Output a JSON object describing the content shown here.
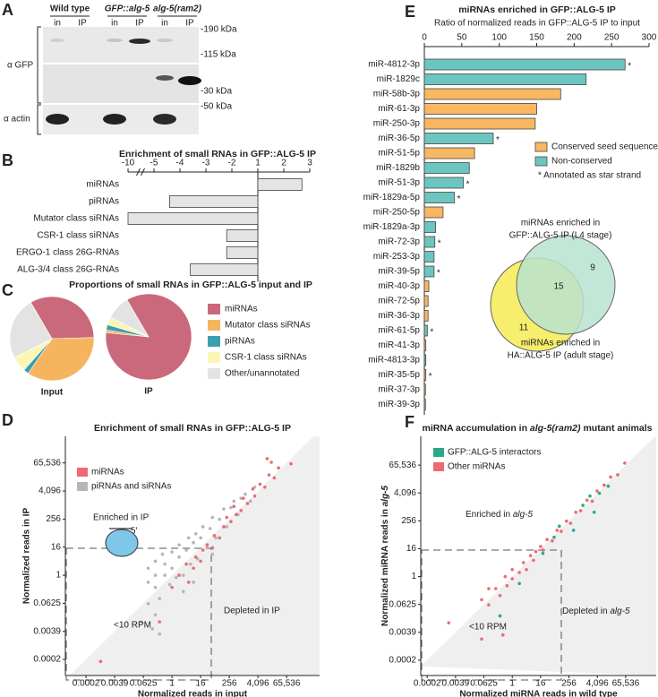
{
  "panel_labels": [
    "A",
    "B",
    "C",
    "D",
    "E",
    "F"
  ],
  "blot": {
    "groups": [
      "Wild type",
      "GFP::alg-5",
      "alg-5(ram2)"
    ],
    "lanes": [
      "in",
      "IP"
    ],
    "antibodies": [
      "α GFP",
      "α actin"
    ],
    "markers": [
      "-190 kDa",
      "-115 kDa",
      "-30 kDa",
      "-50 kDa"
    ]
  },
  "chart_data": [
    {
      "type": "bar",
      "orientation": "horizontal",
      "scale": "fold-change",
      "title": "Enrichment of small RNAs in GFP::ALG-5 IP",
      "categories": [
        "miRNAs",
        "piRNAs",
        "Mutator class siRNAs",
        "CSR-1 class siRNAs",
        "ERGO-1 class 26G-RNAs",
        "ALG-3/4 class 26G-RNAs"
      ],
      "series": [
        {
          "color": "#e4e4e4",
          "values": [
            2.7,
            -4.4,
            -10,
            -2.2,
            -2.2,
            -3.6
          ]
        }
      ],
      "xlim": [
        -10,
        3
      ],
      "xticks": [
        -10,
        -5,
        -4,
        -3,
        -2,
        1,
        2,
        3
      ]
    },
    {
      "type": "pie",
      "title": "Proportions of small RNAs in GFP::ALG-5 input and IP",
      "categories": [
        "miRNAs",
        "Mutator class siRNAs",
        "piRNAs",
        "CSR-1 class siRNAs",
        "Other/unannotated"
      ],
      "colors": [
        "#c9697b",
        "#f7b45e",
        "#3d9fad",
        "#fdf5b5",
        "#e3e3e3"
      ],
      "pies": [
        {
          "label": "Input",
          "values": [
            33,
            35,
            2,
            6,
            24
          ]
        },
        {
          "label": "IP",
          "values": [
            85,
            1,
            2,
            3,
            9
          ]
        }
      ]
    },
    {
      "type": "scatter",
      "title": "Enrichment of small RNAs in GFP::ALG-5 IP",
      "xlabel": "Normalized reads in input",
      "ylabel": "Normalized reads in IP",
      "xscale": "log",
      "yscale": "log",
      "diagonal_shading": true,
      "xlim": [
        3.3e-05,
        1600000
      ],
      "ylim": [
        5e-05,
        910000
      ],
      "xticks": [
        {
          "value": 0.000244,
          "label": "0.0002"
        },
        {
          "value": 0.0039,
          "label": "0.0039"
        },
        0.0625,
        1,
        16,
        256,
        {
          "value": 4096,
          "label": "4,096"
        },
        {
          "value": 65536,
          "label": "65,536"
        }
      ],
      "yticks": [
        {
          "value": 0.000244,
          "label": "0.0002"
        },
        {
          "value": 0.0039,
          "label": "0.0039"
        },
        0.0625,
        1,
        16,
        256,
        {
          "value": 4096,
          "label": "4,096"
        },
        {
          "value": 65536,
          "label": "65,536"
        }
      ],
      "annotations": [
        "Enriched in IP",
        "ALG-5",
        "5'",
        "<10 RPM",
        "Depleted in IP"
      ],
      "series": [
        {
          "name": "miRNAs",
          "color": "#ee6a72",
          "x": [
            2,
            4,
            5,
            8,
            10,
            16,
            20,
            30,
            50,
            60,
            100,
            150,
            200,
            300,
            500,
            800,
            1000,
            1500,
            3000,
            5000,
            8000,
            12000,
            20000,
            30000,
            10000,
            15000,
            0.3,
            0.001,
            1,
            100000,
            400,
            2500
          ],
          "y": [
            1,
            3,
            0.5,
            2,
            6,
            4,
            12,
            20,
            15,
            50,
            40,
            120,
            300,
            200,
            400,
            600,
            2000,
            1200,
            2500,
            8000,
            6000,
            20000,
            15000,
            40000,
            100000,
            70000,
            0.01,
            0.0002,
            0.3,
            60000,
            900,
            5000
          ]
        },
        {
          "name": "piRNAs and siRNAs",
          "color": "#b5b5b5",
          "x": [
            0.1,
            0.1,
            0.1,
            0.2,
            0.2,
            0.2,
            0.2,
            0.3,
            0.4,
            0.5,
            0.5,
            0.8,
            1,
            1,
            1.5,
            2,
            2,
            3,
            4,
            5,
            6,
            8,
            10,
            12,
            16,
            20,
            30,
            40,
            50,
            70,
            100,
            150,
            200,
            300,
            400,
            600,
            800,
            1200,
            2000,
            3000,
            0.05,
            0.15,
            0.3,
            8,
            3,
            50
          ],
          "y": [
            0.5,
            2,
            0.06,
            0.02,
            0.3,
            4,
            1,
            0.1,
            8,
            1,
            3,
            0.4,
            2,
            10,
            0.8,
            6,
            20,
            1,
            12,
            40,
            3,
            25,
            60,
            5,
            40,
            120,
            15,
            100,
            300,
            40,
            250,
            700,
            120,
            800,
            1500,
            400,
            2000,
            3000,
            1500,
            6000,
            0.01,
            0.005,
            0.003,
            0.5,
            0.2,
            8
          ]
        }
      ]
    },
    {
      "type": "bar",
      "orientation": "horizontal",
      "scale": "linear",
      "title": "miRNAs enriched in GFP::ALG-5 IP",
      "subtitle": "Ratio of normalized reads in GFP::ALG-5 IP to input",
      "categories": [
        "miR-4812-3p",
        "miR-1829c",
        "miR-58b-3p",
        "miR-61-3p",
        "miR-250-3p",
        "miR-36-5p",
        "miR-51-5p",
        "miR-1829b",
        "miR-51-3p",
        "miR-1829a-5p",
        "miR-250-5p",
        "miR-1829a-3p",
        "miR-72-3p",
        "miR-253-3p",
        "miR-39-5p",
        "miR-40-3p",
        "miR-72-5p",
        "miR-36-3p",
        "miR-61-5p",
        "miR-41-3p",
        "miR-4813-3p",
        "miR-35-5p",
        "miR-37-3p",
        "miR-39-3p"
      ],
      "series": [
        {
          "name": "Conserved seed sequence",
          "color": "#f8b862",
          "values": [
            null,
            null,
            182,
            150,
            148,
            null,
            67,
            null,
            null,
            null,
            25,
            null,
            null,
            null,
            null,
            6,
            5,
            5,
            null,
            2,
            null,
            2,
            1.5,
            1.5
          ]
        },
        {
          "name": "Non-conserved",
          "color": "#6cc5c0",
          "values": [
            268,
            216,
            null,
            null,
            null,
            92,
            null,
            60,
            52,
            40,
            null,
            15,
            14,
            13,
            13,
            null,
            null,
            null,
            4,
            null,
            2,
            null,
            null,
            null
          ]
        }
      ],
      "star": "*",
      "star_note": "* Annotated as star strand",
      "starred": [
        true,
        false,
        false,
        false,
        false,
        true,
        false,
        false,
        true,
        true,
        false,
        false,
        true,
        false,
        true,
        false,
        false,
        false,
        true,
        false,
        false,
        true,
        false,
        false
      ],
      "xlim": [
        0,
        300
      ],
      "xticks": [
        0,
        50,
        100,
        150,
        200,
        250,
        300
      ]
    },
    {
      "type": "venn",
      "sets": [
        {
          "label": [
            "miRNAs enriched in",
            "GFP::ALG-5 IP (L4 stage)"
          ],
          "color": "#b9e3cf"
        },
        {
          "label": [
            "miRNAs enriched in",
            "HA::ALG-5 IP (adult stage)"
          ],
          "color": "#f6ee6c"
        }
      ],
      "regions": [
        11,
        15,
        9
      ]
    },
    {
      "type": "scatter",
      "title": [
        "miRNA accumulation in ",
        "alg-5(ram2)",
        " mutant animals"
      ],
      "xlabel": "Normalized miRNA reads in wild type",
      "ylabel": [
        "Normalized miRNA reads in ",
        "alg-5"
      ],
      "xscale": "log",
      "yscale": "log",
      "diagonal_shading": true,
      "xlim": [
        0.00013,
        1300000
      ],
      "ylim": [
        5.3e-05,
        1150000
      ],
      "xticks": [
        {
          "value": 0.000244,
          "label": "0.0002"
        },
        {
          "value": 0.0039,
          "label": "0.0039"
        },
        0.0625,
        1,
        16,
        256,
        {
          "value": 4096,
          "label": "4,096"
        },
        {
          "value": 65536,
          "label": "65,536"
        }
      ],
      "yticks": [
        {
          "value": 0.000244,
          "label": "0.0002"
        },
        {
          "value": 0.0039,
          "label": "0.0039"
        },
        0.0625,
        1,
        16,
        256,
        {
          "value": 4096,
          "label": "4,096"
        },
        {
          "value": 65536,
          "label": "65,536"
        }
      ],
      "annotations": [
        [
          "Enriched in ",
          "alg-5"
        ],
        "<10 RPM",
        [
          "Depleted in ",
          "alg-5"
        ]
      ],
      "series": [
        {
          "name": "GFP::ALG-5 interactors",
          "color": "#2aa889",
          "x": [
            0.3,
            2,
            20,
            60,
            100,
            400,
            1000,
            3000,
            5000,
            12000,
            2000
          ],
          "y": [
            0.02,
            0.5,
            10,
            50,
            150,
            100,
            1200,
            600,
            4000,
            8000,
            3000
          ]
        },
        {
          "name": "Other miRNAs",
          "color": "#ee6a72",
          "x": [
            0.05,
            0.1,
            0.2,
            0.3,
            0.5,
            0.6,
            1,
            1,
            2,
            3,
            4,
            6,
            8,
            10,
            16,
            20,
            30,
            50,
            80,
            120,
            200,
            300,
            500,
            800,
            1500,
            2500,
            4000,
            8000,
            15000,
            30000,
            60000,
            0.1,
            0.4,
            0.002,
            0.05
          ],
          "y": [
            0.1,
            0.06,
            0.3,
            0.15,
            1,
            0.4,
            0.8,
            2,
            1.5,
            4,
            2,
            8,
            5,
            12,
            20,
            14,
            40,
            35,
            100,
            90,
            250,
            200,
            600,
            700,
            2000,
            1800,
            5000,
            9000,
            20000,
            25000,
            80000,
            0.3,
            0.003,
            0.01,
            0.002
          ]
        }
      ]
    }
  ]
}
